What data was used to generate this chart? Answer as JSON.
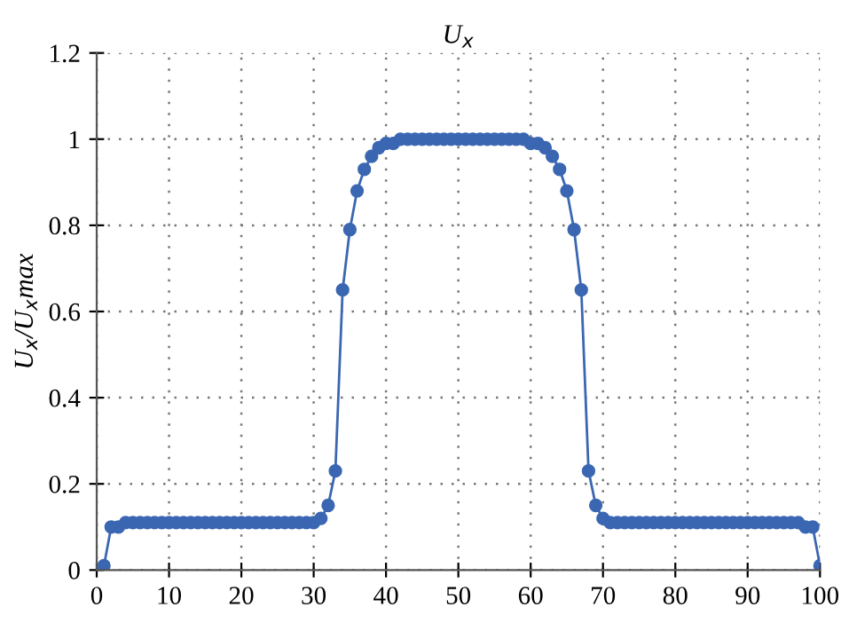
{
  "chart_data": {
    "type": "line",
    "title": "U$_{x}$",
    "ylabel": "U$_{x}$/U$_{x}$max",
    "x": [
      0,
      1,
      2,
      3,
      4,
      5,
      6,
      7,
      8,
      9,
      10,
      11,
      12,
      13,
      14,
      15,
      16,
      17,
      18,
      19,
      20,
      21,
      22,
      23,
      24,
      25,
      26,
      27,
      28,
      29,
      30,
      31,
      32,
      33,
      34,
      35,
      36,
      37,
      38,
      39,
      40,
      41,
      42,
      43,
      44,
      45,
      46,
      47,
      48,
      49,
      50,
      51,
      52,
      53,
      54,
      55,
      56,
      57,
      58,
      59,
      60,
      61,
      62,
      63,
      64,
      65,
      66,
      67,
      68,
      69,
      70,
      71,
      72,
      73,
      74,
      75,
      76,
      77,
      78,
      79,
      80,
      81,
      82,
      83,
      84,
      85,
      86,
      87,
      88,
      89,
      90,
      91,
      92,
      93,
      94,
      95,
      96,
      97,
      98,
      99,
      100
    ],
    "series": [
      {
        "color": "#3a66b2",
        "values": [
          0,
          0.01,
          0.1,
          0.1,
          0.11,
          0.11,
          0.11,
          0.11,
          0.11,
          0.11,
          0.11,
          0.11,
          0.11,
          0.11,
          0.11,
          0.11,
          0.11,
          0.11,
          0.11,
          0.11,
          0.11,
          0.11,
          0.11,
          0.11,
          0.11,
          0.11,
          0.11,
          0.11,
          0.11,
          0.11,
          0.11,
          0.12,
          0.15,
          0.23,
          0.65,
          0.79,
          0.88,
          0.93,
          0.96,
          0.98,
          0.99,
          0.99,
          1,
          1,
          1,
          1,
          1,
          1,
          1,
          1,
          1,
          1,
          1,
          1,
          1,
          1,
          1,
          1,
          1,
          1,
          0.99,
          0.99,
          0.98,
          0.96,
          0.93,
          0.88,
          0.79,
          0.65,
          0.23,
          0.15,
          0.12,
          0.11,
          0.11,
          0.11,
          0.11,
          0.11,
          0.11,
          0.11,
          0.11,
          0.11,
          0.11,
          0.11,
          0.11,
          0.11,
          0.11,
          0.11,
          0.11,
          0.11,
          0.11,
          0.11,
          0.11,
          0.11,
          0.11,
          0.11,
          0.11,
          0.11,
          0.11,
          0.11,
          0.1,
          0.1,
          0.01
        ]
      }
    ],
    "xlim": [
      0,
      100
    ],
    "xticks": [
      0,
      10,
      20,
      30,
      40,
      50,
      60,
      70,
      80,
      90,
      100
    ],
    "ylim": [
      0,
      1.2
    ],
    "yticks": [
      0,
      0.2,
      0.4,
      0.6,
      0.8,
      1,
      1.2
    ],
    "grid": true,
    "marker": "circle",
    "line_style": "solid",
    "legend": false
  }
}
